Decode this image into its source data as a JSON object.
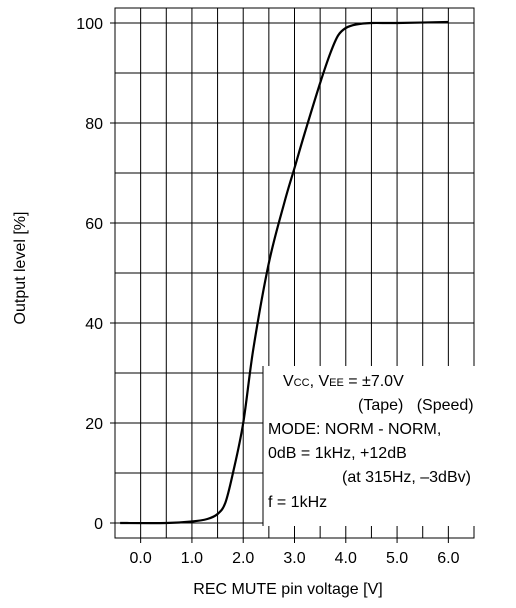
{
  "chart_data": {
    "type": "line",
    "xlabel": "REC MUTE pin voltage [V]",
    "ylabel": "Output level [%]",
    "xlim": [
      -0.5,
      6.5
    ],
    "ylim": [
      -3,
      103
    ],
    "x_ticks": [
      0.0,
      1.0,
      2.0,
      3.0,
      4.0,
      5.0,
      6.0
    ],
    "x_tick_labels": [
      "0.0",
      "1.0",
      "2.0",
      "3.0",
      "4.0",
      "5.0",
      "6.0"
    ],
    "y_ticks": [
      0,
      20,
      40,
      60,
      80,
      100
    ],
    "y_tick_labels": [
      "0",
      "20",
      "40",
      "60",
      "80",
      "100"
    ],
    "grid": true,
    "series": [
      {
        "x": [
          -0.4,
          0.5,
          1.0,
          1.3,
          1.5,
          1.65,
          1.8,
          2.0,
          2.2,
          2.5,
          2.8,
          3.0,
          3.2,
          3.5,
          3.7,
          3.85,
          4.0,
          4.2,
          4.5,
          5.0,
          6.0
        ],
        "y": [
          0,
          0,
          0.3,
          0.8,
          1.8,
          4,
          10,
          20,
          35,
          52,
          64,
          71,
          78,
          88,
          94,
          97.5,
          99,
          99.7,
          100,
          100,
          100.2
        ]
      }
    ],
    "annotations": [
      {
        "text": "V",
        "sub": "CC",
        "text2": ", V",
        "sub2": "EE",
        "text3": " = ±7.0V"
      },
      {
        "text": "(Tape)   (Speed)"
      },
      {
        "text": "MODE: NORM - NORM,"
      },
      {
        "text": "0dB = 1kHz, +12dB"
      },
      {
        "text": "(at 315Hz, –3dBv)"
      },
      {
        "text": "f = 1kHz"
      }
    ]
  }
}
